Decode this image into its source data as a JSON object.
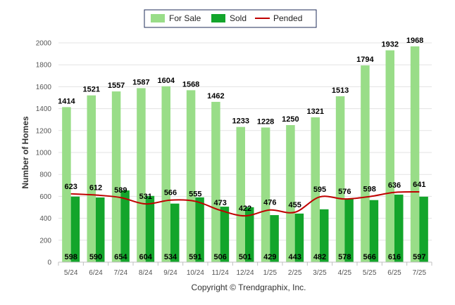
{
  "chart_data": {
    "type": "bar",
    "categories": [
      "5/24",
      "6/24",
      "7/24",
      "8/24",
      "9/24",
      "10/24",
      "11/24",
      "12/24",
      "1/25",
      "2/25",
      "3/25",
      "4/25",
      "5/25",
      "6/25",
      "7/25"
    ],
    "series": [
      {
        "name": "For Sale",
        "type": "bar",
        "color": "#99dd88",
        "values": [
          1414,
          1521,
          1557,
          1587,
          1604,
          1568,
          1462,
          1233,
          1228,
          1250,
          1321,
          1513,
          1794,
          1932,
          1968
        ]
      },
      {
        "name": "Sold",
        "type": "bar",
        "color": "#13a52b",
        "values": [
          598,
          590,
          654,
          604,
          534,
          591,
          506,
          501,
          429,
          443,
          482,
          578,
          566,
          616,
          597
        ]
      },
      {
        "name": "Pended",
        "type": "line",
        "color": "#c00000",
        "values": [
          623,
          612,
          589,
          531,
          566,
          555,
          473,
          422,
          476,
          455,
          595,
          576,
          598,
          636,
          641
        ]
      }
    ],
    "ylabel": "Number of Homes",
    "yticks": [
      0,
      200,
      400,
      600,
      800,
      1000,
      1200,
      1400,
      1600,
      1800,
      2000
    ],
    "ylim": [
      0,
      2000
    ],
    "grid": true,
    "legend_position": "top-center",
    "copyright": "Copyright © Trendgraphix, Inc."
  }
}
